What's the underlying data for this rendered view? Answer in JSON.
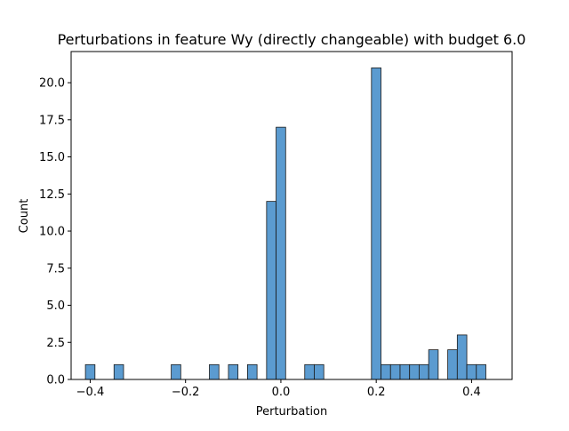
{
  "chart_data": {
    "type": "bar",
    "title": "Perturbations in feature Wy (directly changeable) with budget 6.0",
    "xlabel": "Perturbation",
    "ylabel": "Count",
    "xlim": [
      -0.44,
      0.485
    ],
    "ylim": [
      0,
      22.1
    ],
    "grid": false,
    "bar_color": "#5b9bd0",
    "bar_edge_color": "#1a1a1a",
    "bin_width": 0.02,
    "x_ticks": [
      {
        "value": -0.4,
        "label": "−0.4"
      },
      {
        "value": -0.2,
        "label": "−0.2"
      },
      {
        "value": 0.0,
        "label": "0.0"
      },
      {
        "value": 0.2,
        "label": "0.2"
      },
      {
        "value": 0.4,
        "label": "0.4"
      }
    ],
    "y_ticks": [
      {
        "value": 0.0,
        "label": "0.0"
      },
      {
        "value": 2.5,
        "label": "2.5"
      },
      {
        "value": 5.0,
        "label": "5.0"
      },
      {
        "value": 7.5,
        "label": "7.5"
      },
      {
        "value": 10.0,
        "label": "10.0"
      },
      {
        "value": 12.5,
        "label": "12.5"
      },
      {
        "value": 15.0,
        "label": "15.0"
      },
      {
        "value": 17.5,
        "label": "17.5"
      },
      {
        "value": 20.0,
        "label": "20.0"
      }
    ],
    "bins": [
      {
        "x0": -0.41,
        "count": 1
      },
      {
        "x0": -0.35,
        "count": 1
      },
      {
        "x0": -0.23,
        "count": 1
      },
      {
        "x0": -0.15,
        "count": 1
      },
      {
        "x0": -0.11,
        "count": 1
      },
      {
        "x0": -0.07,
        "count": 1
      },
      {
        "x0": -0.03,
        "count": 12
      },
      {
        "x0": -0.01,
        "count": 17
      },
      {
        "x0": 0.05,
        "count": 1
      },
      {
        "x0": 0.07,
        "count": 1
      },
      {
        "x0": 0.19,
        "count": 21
      },
      {
        "x0": 0.21,
        "count": 1
      },
      {
        "x0": 0.23,
        "count": 1
      },
      {
        "x0": 0.25,
        "count": 1
      },
      {
        "x0": 0.27,
        "count": 1
      },
      {
        "x0": 0.29,
        "count": 1
      },
      {
        "x0": 0.31,
        "count": 2
      },
      {
        "x0": 0.35,
        "count": 2
      },
      {
        "x0": 0.37,
        "count": 3
      },
      {
        "x0": 0.39,
        "count": 1
      },
      {
        "x0": 0.41,
        "count": 1
      }
    ]
  }
}
